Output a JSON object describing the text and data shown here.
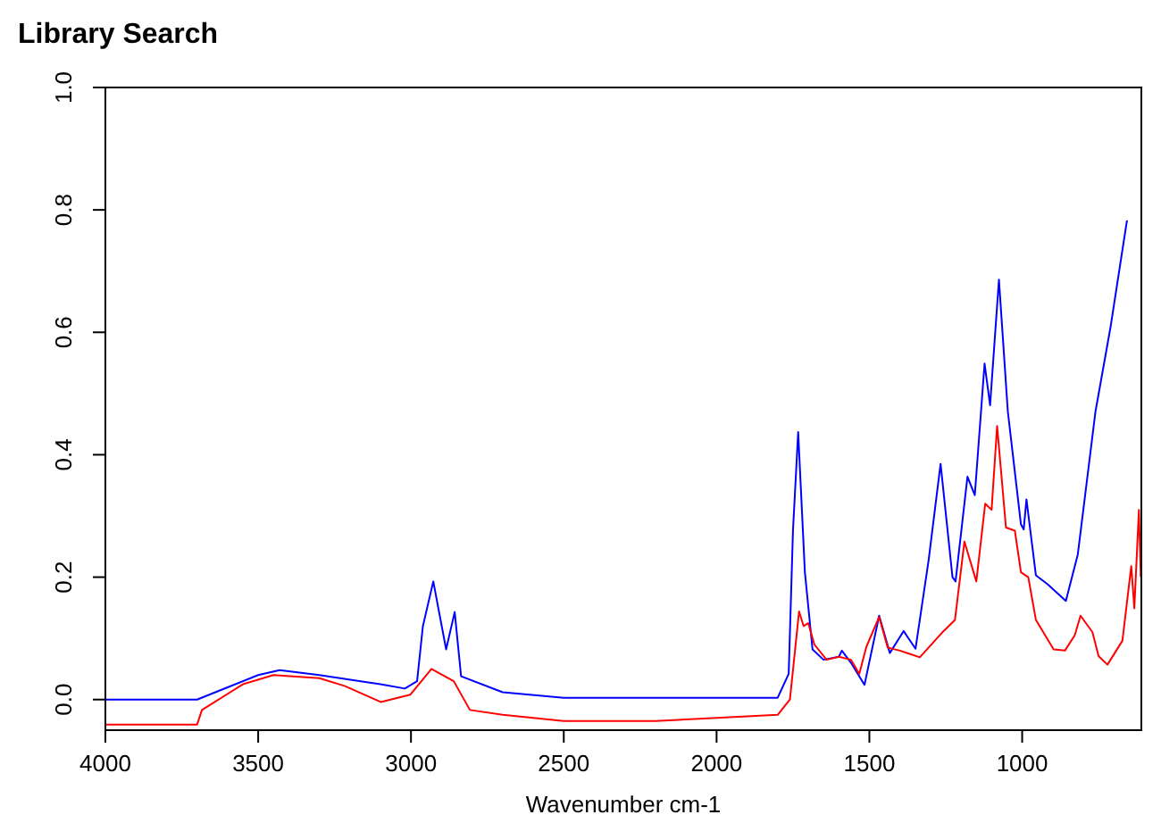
{
  "chart_data": {
    "type": "line",
    "title": "Library Search",
    "xlabel": "Wavenumber cm-1",
    "xlim": [
      4000,
      610
    ],
    "xticks": [
      4000,
      3500,
      3000,
      2500,
      2000,
      1500,
      1000
    ],
    "ylim": [
      -0.05,
      1.0
    ],
    "yticks": [
      {
        "value": 0,
        "label": "0.0"
      },
      0.2,
      0.4,
      0.6,
      0.8,
      {
        "value": 1,
        "label": "1.0"
      }
    ],
    "grid": false,
    "marker": "none",
    "line_style": "solid",
    "series": [
      {
        "color": "#0000ff",
        "x": [
          4000,
          3700,
          3600,
          3500,
          3430,
          3300,
          3100,
          3020,
          2980,
          2961,
          2927,
          2885,
          2857,
          2836,
          2700,
          2500,
          2000,
          1800,
          1764,
          1750,
          1733,
          1711,
          1686,
          1650,
          1600,
          1590,
          1560,
          1516,
          1468,
          1433,
          1388,
          1349,
          1306,
          1267,
          1228,
          1218,
          1179,
          1155,
          1123,
          1105,
          1076,
          1047,
          1004,
          995,
          986,
          955,
          916,
          857,
          818,
          760,
          711,
          657
        ],
        "values": [
          0.0,
          0.0,
          0.02,
          0.04,
          0.048,
          0.04,
          0.025,
          0.018,
          0.03,
          0.12,
          0.193,
          0.082,
          0.143,
          0.038,
          0.012,
          0.003,
          0.003,
          0.003,
          0.042,
          0.276,
          0.437,
          0.208,
          0.082,
          0.065,
          0.07,
          0.08,
          0.06,
          0.024,
          0.137,
          0.076,
          0.112,
          0.083,
          0.228,
          0.385,
          0.2,
          0.193,
          0.364,
          0.334,
          0.549,
          0.481,
          0.686,
          0.471,
          0.286,
          0.278,
          0.327,
          0.203,
          0.188,
          0.161,
          0.237,
          0.471,
          0.608,
          0.783
        ]
      },
      {
        "color": "#ff0000",
        "x": [
          4000,
          3700,
          3684,
          3550,
          3450,
          3300,
          3216,
          3099,
          3002,
          2933,
          2860,
          2807,
          2700,
          2500,
          2200,
          2000,
          1800,
          1760,
          1730,
          1715,
          1700,
          1680,
          1640,
          1600,
          1560,
          1533,
          1510,
          1468,
          1440,
          1400,
          1335,
          1257,
          1220,
          1189,
          1150,
          1121,
          1100,
          1082,
          1053,
          1024,
          1004,
          980,
          955,
          897,
          860,
          828,
          809,
          770,
          750,
          721,
          672,
          643,
          633,
          618,
          612
        ],
        "values": [
          -0.041,
          -0.041,
          -0.017,
          0.025,
          0.04,
          0.035,
          0.022,
          -0.004,
          0.008,
          0.05,
          0.03,
          -0.017,
          -0.025,
          -0.035,
          -0.035,
          -0.03,
          -0.025,
          0.0,
          0.144,
          0.12,
          0.125,
          0.09,
          0.065,
          0.07,
          0.065,
          0.042,
          0.086,
          0.135,
          0.085,
          0.08,
          0.069,
          0.112,
          0.13,
          0.258,
          0.193,
          0.32,
          0.31,
          0.447,
          0.281,
          0.276,
          0.208,
          0.2,
          0.13,
          0.082,
          0.08,
          0.105,
          0.137,
          0.11,
          0.071,
          0.057,
          0.096,
          0.218,
          0.149,
          0.31,
          0.2
        ]
      }
    ]
  }
}
